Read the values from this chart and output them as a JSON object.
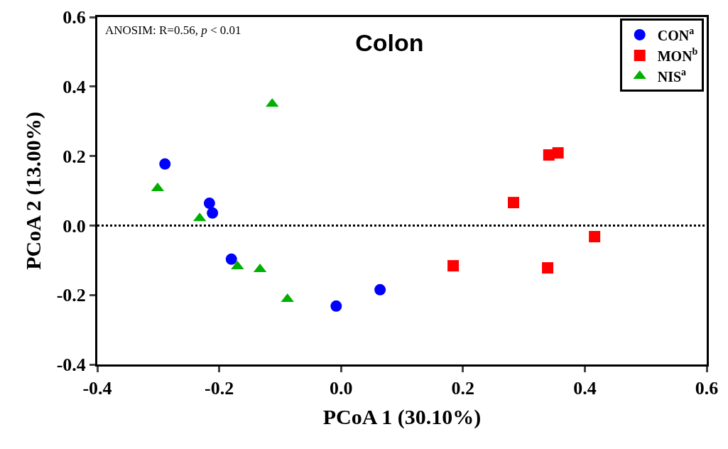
{
  "chart_data": {
    "type": "scatter",
    "title": "Colon",
    "xlabel": "PCoA 1 (30.10%)",
    "ylabel": "PCoA 2 (13.00%)",
    "annotations": [
      "ANOSIM: R=0.56, p < 0.01"
    ],
    "xlim": [
      -0.4,
      0.6
    ],
    "xticks": [
      {
        "value": -0.4,
        "label": "-0.4"
      },
      {
        "value": -0.2,
        "label": "-0.2"
      },
      {
        "value": 0,
        "label": "0.0"
      },
      {
        "value": 0.2,
        "label": "0.2"
      },
      {
        "value": 0.4,
        "label": "0.4"
      },
      {
        "value": 0.6,
        "label": "0.6"
      }
    ],
    "ylim": [
      -0.4,
      0.6
    ],
    "yticks": [
      {
        "value": -0.4,
        "label": "-0.4"
      },
      {
        "value": -0.2,
        "label": "-0.2"
      },
      {
        "value": 0,
        "label": "0.0"
      },
      {
        "value": 0.2,
        "label": "0.2"
      },
      {
        "value": 0.4,
        "label": "0.4"
      },
      {
        "value": 0.6,
        "label": "0.6"
      }
    ],
    "grid": false,
    "legend": "top right",
    "ref_lines": [
      {
        "axis": "y",
        "value": 0,
        "color": "#000000",
        "line_style": "dotted"
      }
    ],
    "series": [
      {
        "name": "CON$^{a}$",
        "color": "#0000ff",
        "marker": "circle",
        "x": [
          -0.289,
          -0.216,
          -0.211,
          -0.18,
          -0.008,
          0.064
        ],
        "values": [
          0.177,
          0.064,
          0.036,
          -0.097,
          -0.232,
          -0.185
        ]
      },
      {
        "name": "MON$^{b}$",
        "color": "#ff0000",
        "marker": "square",
        "x": [
          0.341,
          0.356,
          0.283,
          0.416,
          0.184,
          0.339
        ],
        "values": [
          0.203,
          0.209,
          0.066,
          -0.032,
          -0.116,
          -0.122
        ]
      },
      {
        "name": "NIS$^{a}$",
        "color": "#00b000",
        "marker": "triangle",
        "x": [
          -0.113,
          -0.301,
          -0.232,
          -0.17,
          -0.133,
          -0.088
        ],
        "values": [
          0.35,
          0.107,
          0.021,
          -0.118,
          -0.126,
          -0.212
        ]
      }
    ]
  }
}
